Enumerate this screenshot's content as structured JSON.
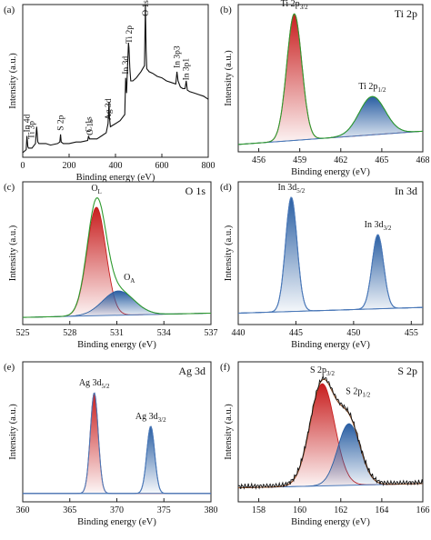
{
  "figure": {
    "panels": [
      "a",
      "b",
      "c",
      "d",
      "e",
      "f"
    ]
  },
  "colors": {
    "red_fill": "#c81e1e",
    "blue_fill": "#2a5fa3",
    "orange_fill": "#e8621a",
    "envelope_green": "#2e9a2e",
    "envelope_brown": "#8a4a20",
    "baseline_blue": "#4a78b8",
    "survey_line": "#111111"
  },
  "chart_data": [
    {
      "panel": "a",
      "type": "line",
      "tag": "(a)",
      "xlabel": "Binding energy (eV)",
      "ylabel": "Intensity (a.u.)",
      "xlim": [
        0,
        800
      ],
      "xticks": [
        0,
        200,
        400,
        600,
        800
      ],
      "x_reversed": false,
      "y_ticks_shown": false,
      "series": [
        {
          "x": [
            0,
            15,
            18,
            22,
            25,
            32,
            40,
            45,
            55,
            60,
            65,
            70,
            80,
            100,
            120,
            150,
            160,
            163,
            166,
            175,
            200,
            230,
            250,
            280,
            284,
            288,
            300,
            320,
            340,
            360,
            368,
            372,
            374,
            378,
            400,
            420,
            440,
            444,
            448,
            452,
            456,
            458,
            462,
            466,
            475,
            490,
            510,
            525,
            529,
            532,
            535,
            545,
            560,
            580,
            600,
            620,
            640,
            660,
            665,
            670,
            680,
            690,
            700,
            705,
            710,
            720,
            740,
            760,
            780,
            800
          ],
          "y": [
            0.03,
            0.05,
            0.14,
            0.07,
            0.06,
            0.06,
            0.06,
            0.07,
            0.09,
            0.2,
            0.1,
            0.09,
            0.09,
            0.09,
            0.08,
            0.09,
            0.1,
            0.15,
            0.1,
            0.09,
            0.09,
            0.1,
            0.1,
            0.11,
            0.14,
            0.12,
            0.12,
            0.12,
            0.14,
            0.16,
            0.22,
            0.36,
            0.26,
            0.2,
            0.22,
            0.24,
            0.28,
            0.52,
            0.42,
            0.6,
            0.75,
            0.72,
            0.58,
            0.5,
            0.5,
            0.52,
            0.56,
            0.6,
            1.0,
            0.7,
            0.58,
            0.56,
            0.55,
            0.53,
            0.52,
            0.5,
            0.49,
            0.48,
            0.56,
            0.5,
            0.46,
            0.45,
            0.45,
            0.5,
            0.44,
            0.43,
            0.42,
            0.41,
            0.4,
            0.38
          ]
        }
      ],
      "annotations": [
        {
          "label": "In 4d",
          "x": 18
        },
        {
          "label": "Ti 3p",
          "x": 37
        },
        {
          "label": "S 2p",
          "x": 163
        },
        {
          "label": "C 1s",
          "x": 284
        },
        {
          "label": "O 1s",
          "x": 290
        },
        {
          "label": "Ag 3d",
          "x": 368
        },
        {
          "label": "In 3d",
          "x": 444
        },
        {
          "label": "Ti 2p",
          "x": 458
        },
        {
          "label": "O 1s",
          "x": 530
        },
        {
          "label": "In 3p3",
          "x": 665
        },
        {
          "label": "In 3p1",
          "x": 703
        }
      ]
    },
    {
      "panel": "b",
      "type": "area",
      "tag": "(b)",
      "title": "Ti 2p",
      "xlabel": "Binding energy (eV)",
      "ylabel": "Intensity (a.u.)",
      "xlim": [
        454.5,
        468
      ],
      "xticks": [
        456,
        459,
        462,
        465,
        468
      ],
      "baseline": [
        0.05,
        0.14
      ],
      "envelope_color": "green",
      "peaks": [
        {
          "label": "Ti 2p",
          "sub": "3/2",
          "center": 458.6,
          "height": 0.86,
          "width": 0.55,
          "color": "red"
        },
        {
          "label": "Ti 2p",
          "sub": "1/2",
          "center": 464.3,
          "height": 0.26,
          "width": 0.95,
          "color": "blue"
        }
      ]
    },
    {
      "panel": "c",
      "type": "area",
      "tag": "(c)",
      "title": "O 1s",
      "xlabel": "Binding energy (eV)",
      "ylabel": "Intensity (a.u.)",
      "xlim": [
        525,
        537
      ],
      "xticks": [
        525,
        528,
        531,
        534,
        537
      ],
      "baseline": [
        0.05,
        0.08
      ],
      "envelope_color": "green",
      "peaks": [
        {
          "label": "O",
          "sub": "L",
          "center": 529.7,
          "height": 0.76,
          "width": 0.6,
          "color": "red"
        },
        {
          "label": "O",
          "sub": "A",
          "center": 531.1,
          "height": 0.17,
          "width": 1.0,
          "color": "blue"
        }
      ]
    },
    {
      "panel": "d",
      "type": "area",
      "tag": "(d)",
      "title": "In 3d",
      "xlabel": "Binding energy (eV)",
      "ylabel": "Intensity (a.u.)",
      "xlim": [
        440,
        456
      ],
      "xticks": [
        440,
        445,
        450,
        455
      ],
      "baseline": [
        0.08,
        0.12
      ],
      "envelope_color": "blue",
      "peaks": [
        {
          "label": "In 3d",
          "sub": "5/2",
          "center": 444.6,
          "height": 0.8,
          "width": 0.5,
          "color": "blue"
        },
        {
          "label": "In 3d",
          "sub": "3/2",
          "center": 452.1,
          "height": 0.52,
          "width": 0.5,
          "color": "blue"
        }
      ]
    },
    {
      "panel": "e",
      "type": "area",
      "tag": "(e)",
      "title": "Ag 3d",
      "xlabel": "Binding energy (eV)",
      "ylabel": "Intensity (a.u.)",
      "xlim": [
        360,
        380
      ],
      "xticks": [
        360,
        365,
        370,
        375,
        380
      ],
      "baseline": [
        0.06,
        0.06
      ],
      "envelope_color": "blue",
      "peaks": [
        {
          "label": "Ag 3d",
          "sub": "5/2",
          "center": 367.6,
          "height": 0.72,
          "width": 0.42,
          "color": "red"
        },
        {
          "label": "Ag 3d",
          "sub": "3/2",
          "center": 373.6,
          "height": 0.48,
          "width": 0.42,
          "color": "blue"
        }
      ]
    },
    {
      "panel": "f",
      "type": "area",
      "tag": "(f)",
      "title": "S 2p",
      "xlabel": "Binding energy (eV)",
      "ylabel": "Intensity (a.u.)",
      "xlim": [
        157,
        166
      ],
      "xticks": [
        158,
        160,
        162,
        164,
        166
      ],
      "baseline": [
        0.1,
        0.13
      ],
      "envelope_color": "brown",
      "peaks": [
        {
          "label": "S 2p",
          "sub": "3/2",
          "center": 161.1,
          "height": 0.73,
          "width": 0.6,
          "color": "red"
        },
        {
          "label": "S 2p",
          "sub": "1/2",
          "center": 162.4,
          "height": 0.44,
          "width": 0.55,
          "color": "blue"
        }
      ]
    }
  ]
}
